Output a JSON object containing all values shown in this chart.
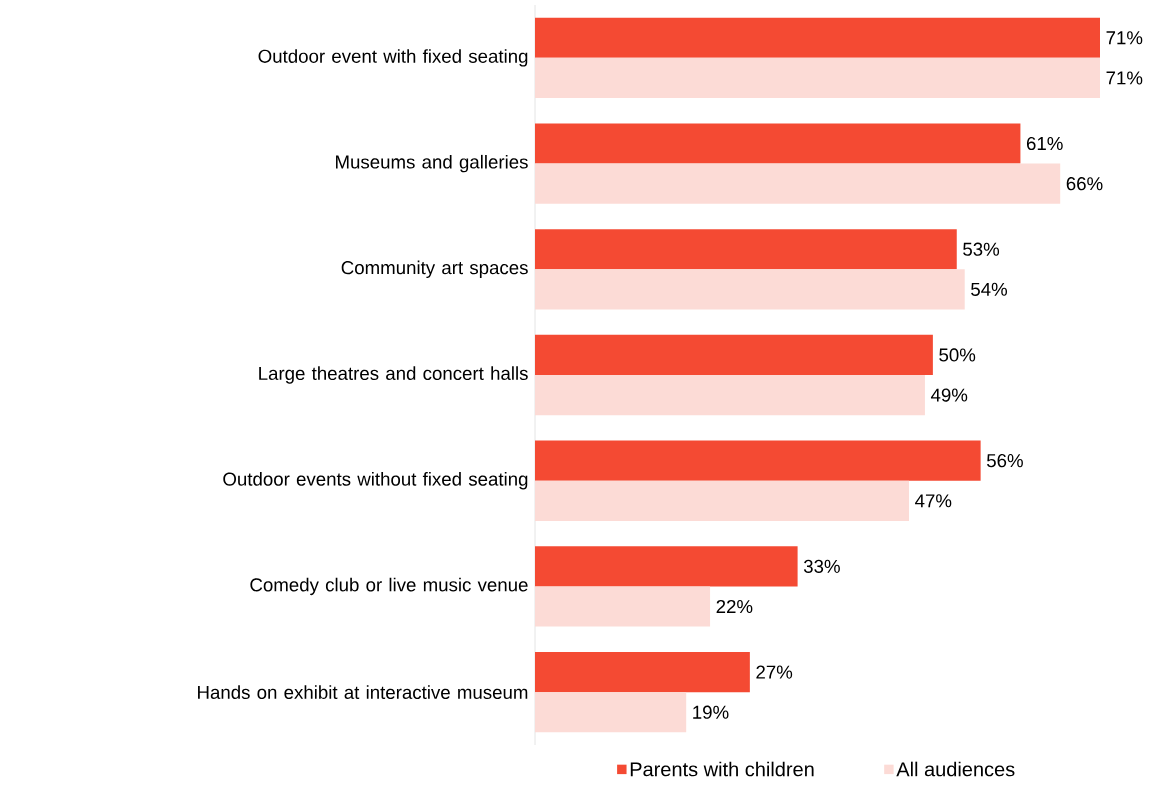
{
  "chart_data": {
    "type": "bar",
    "orientation": "horizontal",
    "legend": "bottom",
    "categories": [
      "Outdoor event with fixed seating",
      "Museums and galleries",
      "Community art spaces",
      "Large theatres and concert halls",
      "Outdoor events without fixed seating",
      "Comedy club or live music venue",
      "Hands on exhibit at interactive museum"
    ],
    "series": [
      {
        "name": "Parents with children",
        "color": "#f44a33",
        "values": [
          71,
          61,
          53,
          50,
          56,
          33,
          27
        ],
        "value_labels": [
          "71%",
          "61%",
          "53%",
          "50%",
          "56%",
          "33%",
          "27%"
        ]
      },
      {
        "name": "All audiences",
        "color": "#fcdbd6",
        "values": [
          71,
          66,
          54,
          49,
          47,
          22,
          19
        ],
        "value_labels": [
          "71%",
          "66%",
          "54%",
          "49%",
          "47%",
          "22%",
          "19%"
        ]
      }
    ]
  }
}
